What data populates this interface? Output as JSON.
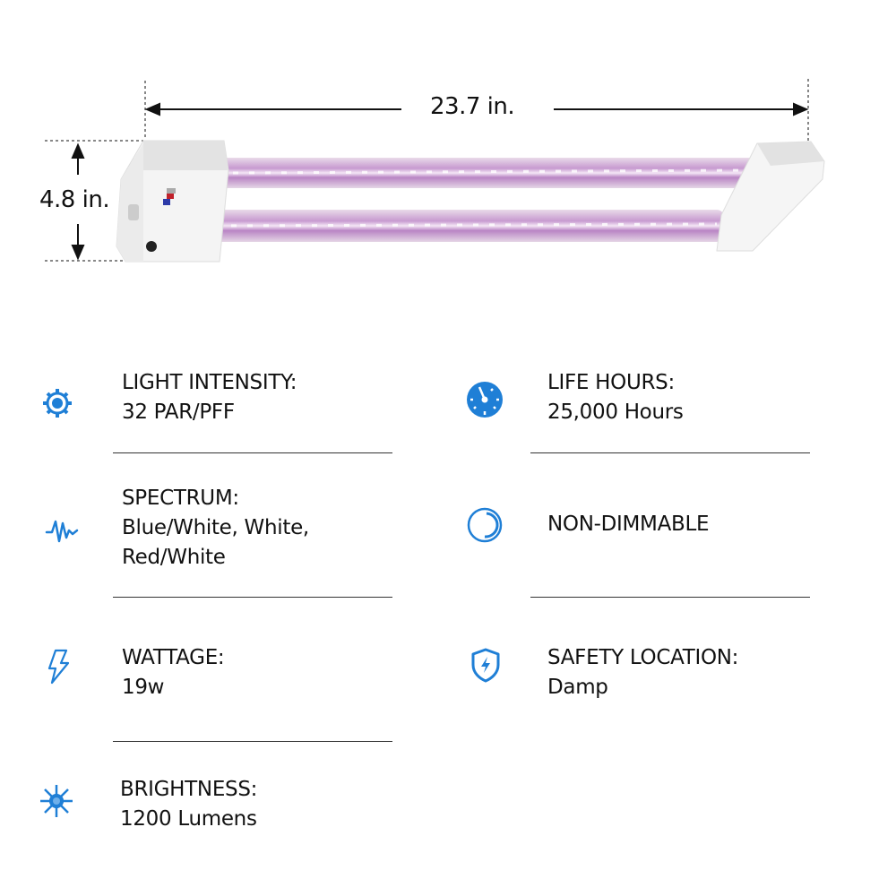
{
  "dimensions": {
    "width": "23.7 in.",
    "height": "4.8 in."
  },
  "accent_color": "#1f7fd6",
  "specs_left": [
    {
      "icon": "gear-sun-icon",
      "label": "LIGHT INTENSITY:",
      "lines": [
        "32 PAR/PFF"
      ]
    },
    {
      "icon": "waveform-icon",
      "label": "SPECTRUM:",
      "lines": [
        "Blue/White, White,",
        "Red/White"
      ]
    },
    {
      "icon": "lightning-bolt-icon",
      "label": "WATTAGE:",
      "lines": [
        "19w"
      ]
    },
    {
      "icon": "sun-icon",
      "label": "BRIGHTNESS:",
      "lines": [
        "1200 Lumens"
      ]
    }
  ],
  "specs_right": [
    {
      "icon": "gauge-icon",
      "label": "LIFE HOURS:",
      "lines": [
        "25,000 Hours"
      ]
    },
    {
      "icon": "dial-icon",
      "label": "NON-DIMMABLE",
      "lines": []
    },
    {
      "icon": "shield-bolt-icon",
      "label": "SAFETY LOCATION:",
      "lines": [
        "Damp"
      ]
    }
  ]
}
